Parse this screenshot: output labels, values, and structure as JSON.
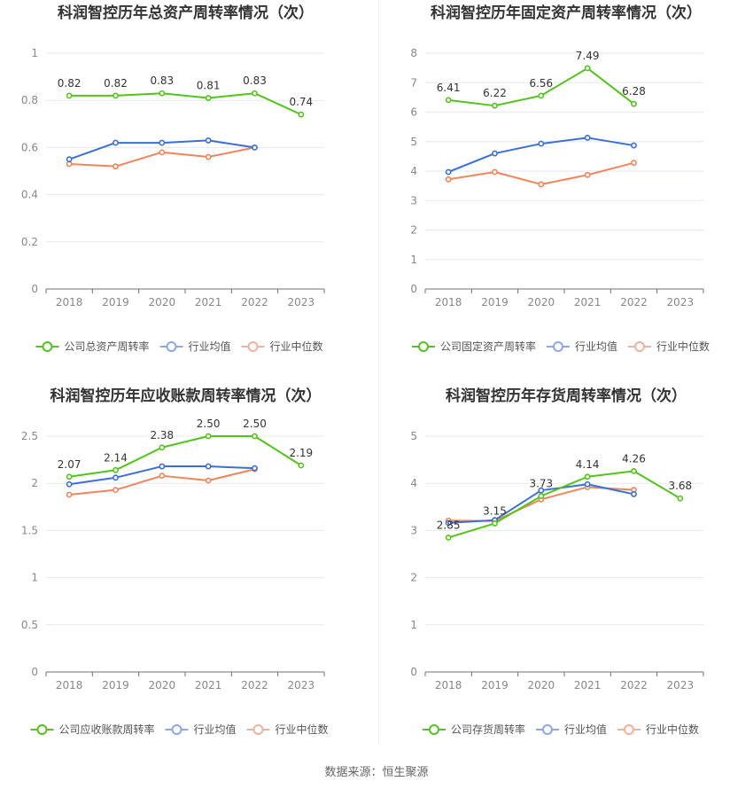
{
  "colors": {
    "company": "#52c41a",
    "industry_avg": "#3a6fd8",
    "industry_median": "#f0855a",
    "legend_avg": "#8aa8e8",
    "legend_median": "#f3b09a"
  },
  "source": "数据来源：恒生聚源",
  "chart_data": [
    {
      "type": "line",
      "title": "科润智控历年总资产周转率情况（次）",
      "categories": [
        "2018",
        "2019",
        "2020",
        "2021",
        "2022",
        "2023"
      ],
      "ylim": [
        0,
        1
      ],
      "yticks": [
        "0",
        "0.2",
        "0.4",
        "0.6",
        "0.8",
        "1"
      ],
      "legend": [
        "公司总资产周转率",
        "行业均值",
        "行业中位数"
      ],
      "series": [
        {
          "name": "公司总资产周转率",
          "values": [
            0.82,
            0.82,
            0.83,
            0.81,
            0.83,
            0.74
          ],
          "labels": [
            "0.82",
            "0.82",
            "0.83",
            "0.81",
            "0.83",
            "0.74"
          ]
        },
        {
          "name": "行业均值",
          "values": [
            0.55,
            0.62,
            0.62,
            0.63,
            0.6,
            null
          ]
        },
        {
          "name": "行业中位数",
          "values": [
            0.53,
            0.52,
            0.58,
            0.56,
            0.6,
            null
          ]
        }
      ]
    },
    {
      "type": "line",
      "title": "科润智控历年固定资产周转率情况（次）",
      "categories": [
        "2018",
        "2019",
        "2020",
        "2021",
        "2022",
        "2023"
      ],
      "ylim": [
        0,
        8
      ],
      "yticks": [
        "0",
        "1",
        "2",
        "3",
        "4",
        "5",
        "6",
        "7",
        "8"
      ],
      "legend": [
        "公司固定资产周转率",
        "行业均值",
        "行业中位数"
      ],
      "series": [
        {
          "name": "公司固定资产周转率",
          "values": [
            6.41,
            6.22,
            6.56,
            7.49,
            6.28,
            null
          ],
          "labels": [
            "6.41",
            "6.22",
            "6.56",
            "7.49",
            "6.28",
            ""
          ]
        },
        {
          "name": "行业均值",
          "values": [
            3.97,
            4.6,
            4.93,
            5.13,
            4.87,
            null
          ]
        },
        {
          "name": "行业中位数",
          "values": [
            3.72,
            3.97,
            3.55,
            3.87,
            4.28,
            null
          ]
        }
      ]
    },
    {
      "type": "line",
      "title": "科润智控历年应收账款周转率情况（次）",
      "categories": [
        "2018",
        "2019",
        "2020",
        "2021",
        "2022",
        "2023"
      ],
      "ylim": [
        0,
        2.5
      ],
      "yticks": [
        "0",
        "0.5",
        "1",
        "1.5",
        "2",
        "2.5"
      ],
      "legend": [
        "公司应收账款周转率",
        "行业均值",
        "行业中位数"
      ],
      "series": [
        {
          "name": "公司应收账款周转率",
          "values": [
            2.07,
            2.14,
            2.38,
            2.5,
            2.5,
            2.19
          ],
          "labels": [
            "2.07",
            "2.14",
            "2.38",
            "2.50",
            "2.50",
            "2.19"
          ]
        },
        {
          "name": "行业均值",
          "values": [
            1.99,
            2.06,
            2.18,
            2.18,
            2.16,
            null
          ]
        },
        {
          "name": "行业中位数",
          "values": [
            1.88,
            1.93,
            2.08,
            2.03,
            2.15,
            null
          ]
        }
      ]
    },
    {
      "type": "line",
      "title": "科润智控历年存货周转率情况（次）",
      "categories": [
        "2018",
        "2019",
        "2020",
        "2021",
        "2022",
        "2023"
      ],
      "ylim": [
        0,
        5
      ],
      "yticks": [
        "0",
        "1",
        "2",
        "3",
        "4",
        "5"
      ],
      "legend": [
        "公司存货周转率",
        "行业均值",
        "行业中位数"
      ],
      "series": [
        {
          "name": "公司存货周转率",
          "values": [
            2.85,
            3.15,
            3.73,
            4.14,
            4.26,
            3.68
          ],
          "labels": [
            "2.85",
            "3.15",
            "3.73",
            "4.14",
            "4.26",
            "3.68"
          ]
        },
        {
          "name": "行业均值",
          "values": [
            3.16,
            3.22,
            3.85,
            3.98,
            3.77,
            null
          ]
        },
        {
          "name": "行业中位数",
          "values": [
            3.21,
            3.2,
            3.66,
            3.92,
            3.86,
            null
          ]
        }
      ]
    }
  ]
}
